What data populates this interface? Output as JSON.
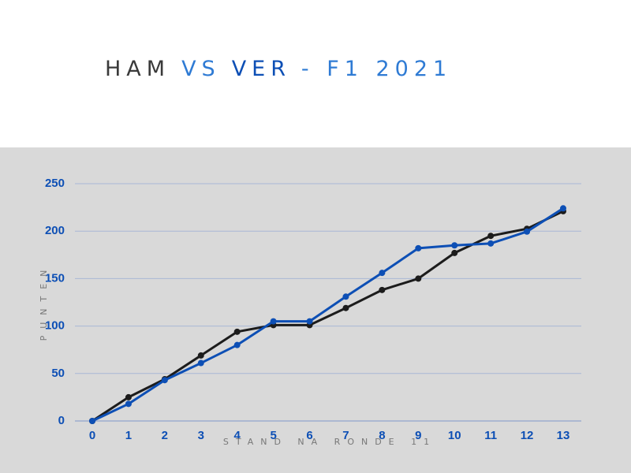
{
  "chart_data": {
    "type": "line",
    "title": [
      "HAM",
      "VS",
      "VER",
      "- F1 2021"
    ],
    "title_colors": [
      "#3a3a3a",
      "#2f7bd4",
      "#0d4fb5",
      "#2f7bd4"
    ],
    "x_label": "STAND NA RONDE 11",
    "y_label": "PUNTEN",
    "x": [
      0,
      1,
      2,
      3,
      4,
      5,
      6,
      7,
      8,
      9,
      10,
      11,
      12,
      13
    ],
    "series": [
      {
        "name": "HAM",
        "color": "#1c1c1c",
        "values": [
          0,
          25,
          44,
          69,
          94,
          101,
          101,
          119,
          138,
          150,
          177,
          195,
          202.5,
          221
        ]
      },
      {
        "name": "VER",
        "color": "#0d4fb5",
        "values": [
          0,
          18,
          43,
          61,
          80,
          105,
          105,
          131,
          156,
          182,
          185,
          187,
          199.5,
          224
        ]
      }
    ],
    "xlim": [
      0,
      13
    ],
    "xticks": [
      0,
      1,
      2,
      3,
      4,
      5,
      6,
      7,
      8,
      9,
      10,
      11,
      12,
      13
    ],
    "ylim": [
      0,
      250
    ],
    "yticks": [
      0,
      50,
      100,
      150,
      200,
      250
    ],
    "grid": true
  }
}
